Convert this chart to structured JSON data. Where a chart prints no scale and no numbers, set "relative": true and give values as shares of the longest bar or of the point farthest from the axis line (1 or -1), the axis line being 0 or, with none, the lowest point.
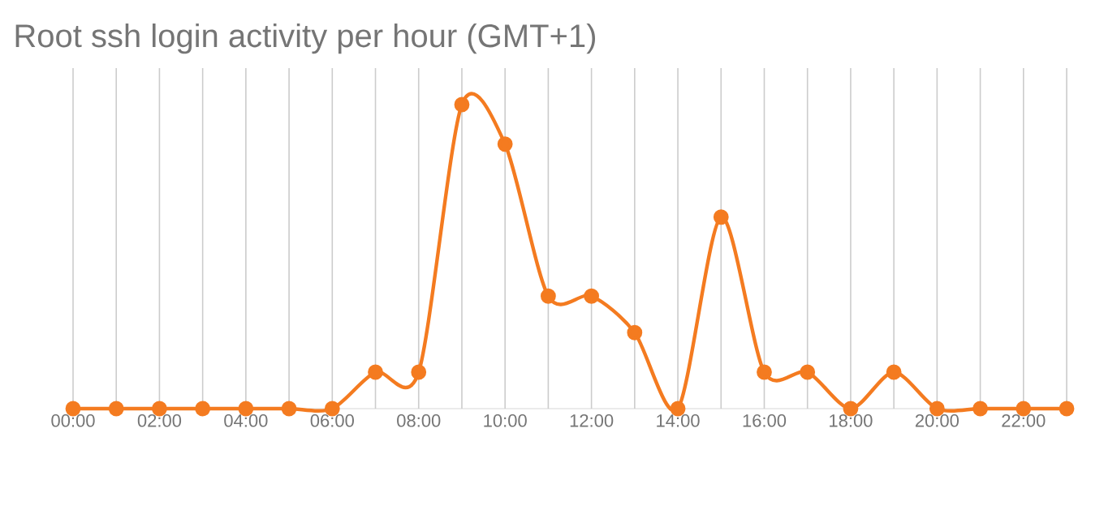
{
  "chart_data": {
    "type": "line",
    "title": "Root ssh login activity per hour (GMT+1)",
    "categories": [
      "00:00",
      null,
      "02:00",
      null,
      "04:00",
      null,
      "06:00",
      null,
      "08:00",
      null,
      "10:00",
      null,
      "12:00",
      null,
      "14:00",
      null,
      "16:00",
      null,
      "18:00",
      null,
      "20:00",
      null,
      "22:00",
      null
    ],
    "series": [
      {
        "color": "#f47b20",
        "values": [
          0,
          0,
          0,
          0,
          0,
          0,
          0,
          0.12,
          0.12,
          1,
          0.87,
          0.37,
          0.37,
          0.25,
          0,
          0.63,
          0.12,
          0.12,
          0,
          0.12,
          0,
          0,
          0,
          0
        ]
      }
    ],
    "relative": true,
    "grid": "x",
    "marker": "circle",
    "line_style": "solid"
  }
}
